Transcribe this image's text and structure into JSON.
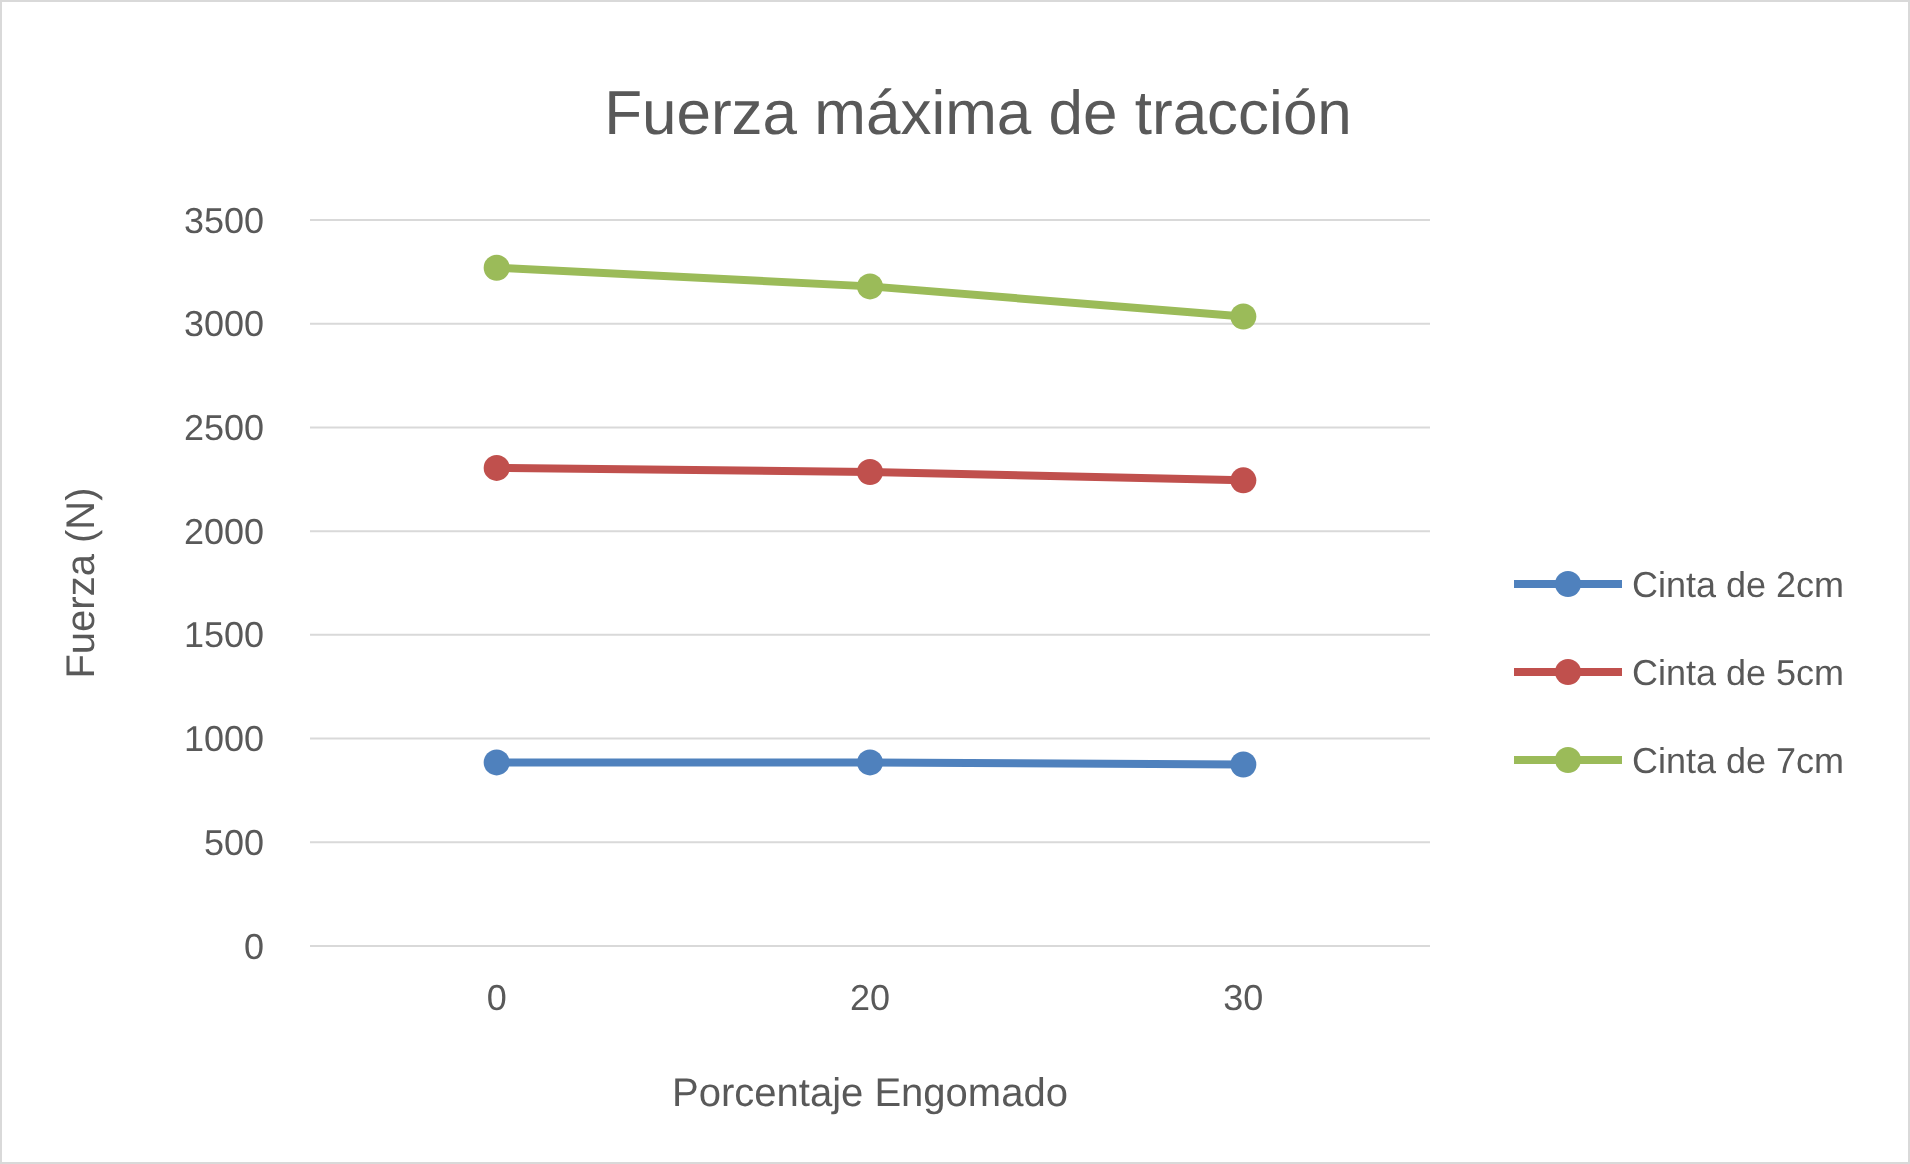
{
  "chart_data": {
    "type": "line",
    "title": "Fuerza máxima de tracción",
    "xlabel": "Porcentaje Engomado",
    "ylabel": "Fuerza (N)",
    "categories": [
      "0",
      "20",
      "30"
    ],
    "series": [
      {
        "name": "Cinta de 2cm",
        "color": "#4f81bd",
        "values": [
          885,
          885,
          875
        ]
      },
      {
        "name": "Cinta de 5cm",
        "color": "#c0504d",
        "values": [
          2305,
          2285,
          2245
        ]
      },
      {
        "name": "Cinta de 7cm",
        "color": "#9bbb59",
        "values": [
          3270,
          3180,
          3035
        ]
      }
    ],
    "ylim": [
      0,
      3500
    ],
    "yticks": [
      0,
      500,
      1000,
      1500,
      2000,
      2500,
      3000,
      3500
    ],
    "grid": "y",
    "legend": "right",
    "marker": "circle",
    "line_style": "solid"
  }
}
